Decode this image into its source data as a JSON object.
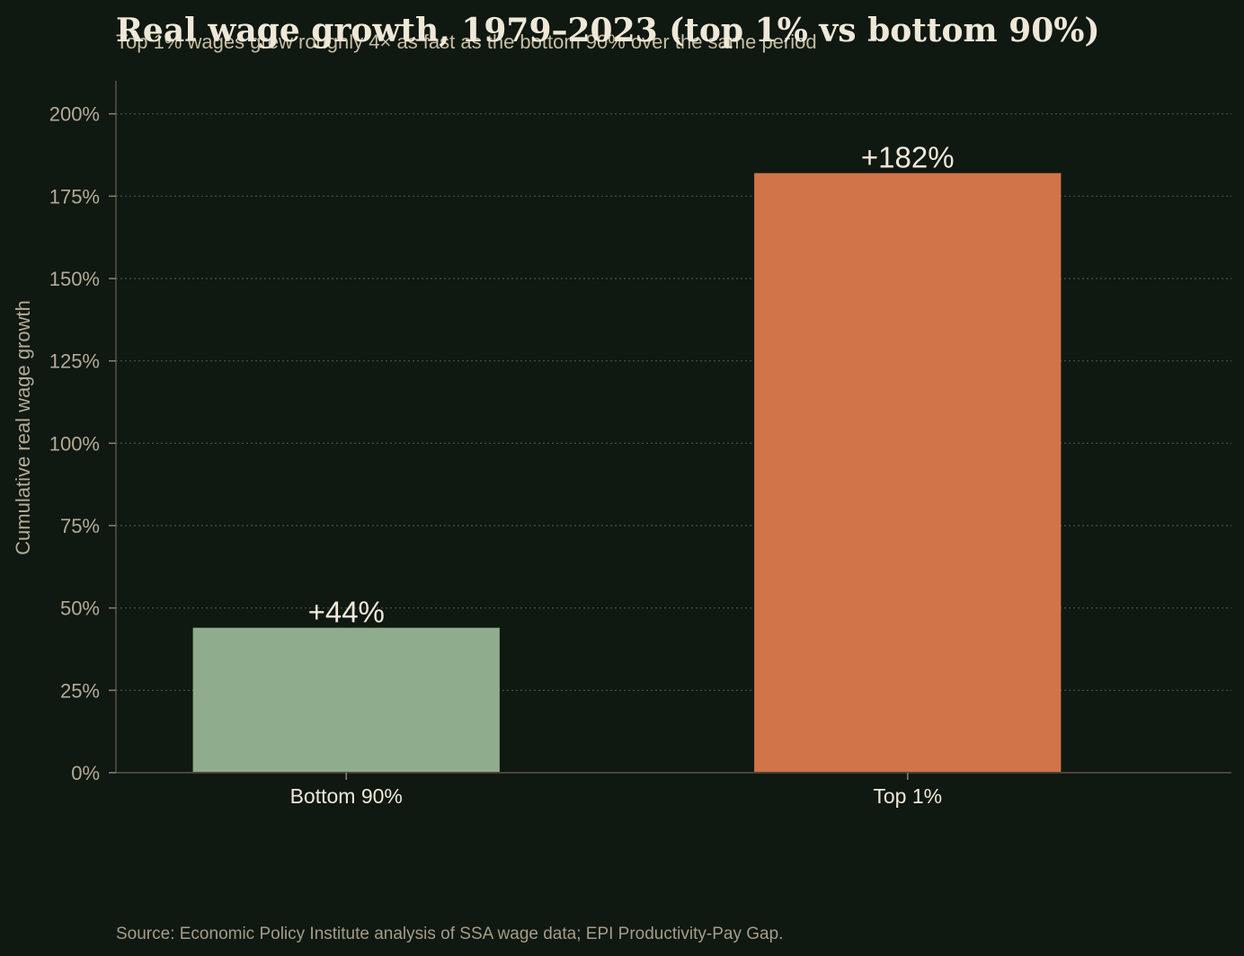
{
  "chart_data": {
    "type": "bar",
    "title": "Real wage growth, 1979–2023 (top 1% vs bottom 90%)",
    "subtitle": "Top 1% wages grew roughly 4× as fast as the bottom 90% over the same period",
    "categories": [
      "Bottom 90%",
      "Top 1%"
    ],
    "values": [
      44,
      182
    ],
    "value_labels": [
      "+44%",
      "+182%"
    ],
    "bar_colors": [
      "#8fad8c",
      "#d2744a"
    ],
    "xlabel": "",
    "ylabel": "Cumulative real wage growth",
    "ylim": [
      0,
      210
    ],
    "yticks": [
      0,
      25,
      50,
      75,
      100,
      125,
      150,
      175,
      200
    ],
    "ytick_labels": [
      "0%",
      "25%",
      "50%",
      "75%",
      "100%",
      "125%",
      "150%",
      "175%",
      "200%"
    ],
    "grid": true,
    "grid_axis": "y",
    "source": "Source: Economic Policy Institute analysis of SSA wage data; EPI Productivity-Pay Gap."
  }
}
